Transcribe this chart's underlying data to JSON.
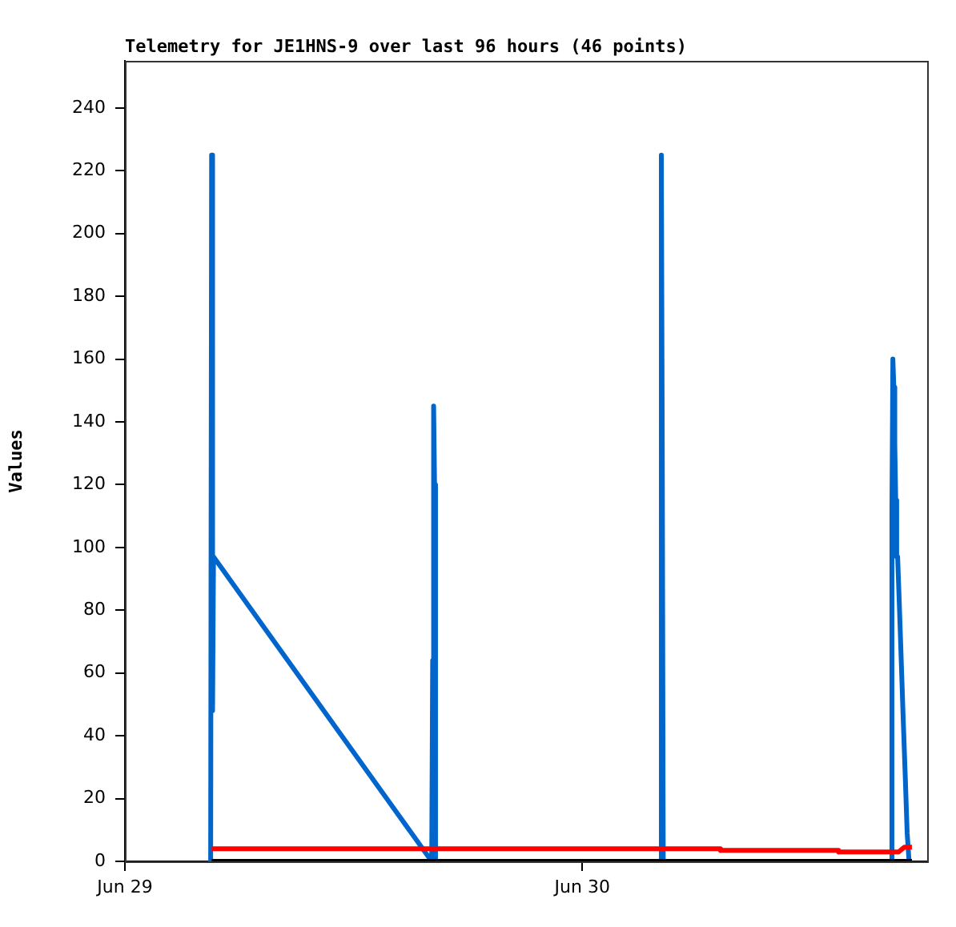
{
  "chart_data": {
    "type": "line",
    "title": "Telemetry for JE1HNS-9 over last 96 hours (46 points)",
    "ylabel": "Values",
    "marker": "none",
    "grid": false,
    "xlim": [
      "--06-29",
      "--06-30T18:06"
    ],
    "xticks": [
      {
        "value": "--06-29",
        "label": "Jun 29"
      },
      {
        "value": "--06-30",
        "label": "Jun 30"
      }
    ],
    "ylim": [
      0,
      255
    ],
    "yticks": [
      0,
      20,
      40,
      60,
      80,
      100,
      120,
      140,
      160,
      180,
      200,
      220,
      240
    ],
    "series": [
      {
        "color": "#0066cc",
        "x": [
          "--06-29T04:30",
          "--06-29T04:33",
          "--06-29T04:36",
          "--06-29T04:39",
          "--06-29T16:06",
          "--06-29T16:09",
          "--06-29T16:12",
          "--06-29T16:15",
          "--06-29T16:18",
          "--06-30T04:06",
          "--06-30T04:09",
          "--06-30T04:12",
          "--06-30T04:15",
          "--06-30T16:12",
          "--06-30T16:15",
          "--06-30T16:18",
          "--06-30T16:21",
          "--06-30T16:24",
          "--06-30T16:27",
          "--06-30T16:30",
          "--06-30T16:33",
          "--06-30T16:39",
          "--06-30T16:45",
          "--06-30T16:51",
          "--06-30T16:57",
          "--06-30T17:03",
          "--06-30T17:09"
        ],
        "values": [
          0,
          225,
          48,
          97,
          0,
          64,
          145,
          120,
          0,
          0,
          225,
          128,
          0,
          0,
          112,
          160,
          151,
          133,
          115,
          97,
          97,
          80,
          62,
          44,
          27,
          9,
          0
        ]
      },
      {
        "color": "#ff0000",
        "x": [
          "--06-29T04:33",
          "--06-30T07:12",
          "--06-30T07:15",
          "--06-30T13:24",
          "--06-30T13:27",
          "--06-30T16:36",
          "--06-30T16:54",
          "--06-30T17:18"
        ],
        "values": [
          4,
          4,
          3.5,
          3.5,
          3,
          3,
          4.5,
          4.5
        ]
      },
      {
        "color": "#000000",
        "x": [
          "--06-29T04:33",
          "--06-30T17:18"
        ],
        "values": [
          0,
          0
        ]
      }
    ]
  }
}
